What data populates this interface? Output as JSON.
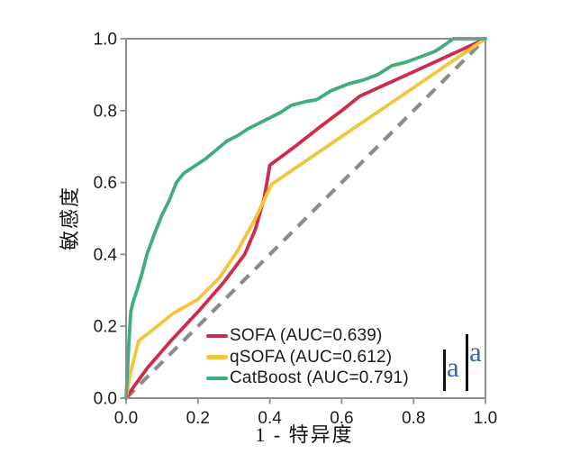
{
  "figure": {
    "background": "#ffffff",
    "title": ""
  },
  "axis": {
    "spine_color": "#8e8e8e",
    "tick_color": "#8e8e8e",
    "tick_text_color": "#1b1b1b"
  },
  "chart_data": {
    "type": "line",
    "subtype": "roc-curves",
    "xlabel": "1 - 特异度",
    "ylabel": "敏感度",
    "xlim": [
      0.0,
      1.0
    ],
    "ylim": [
      0.0,
      1.0
    ],
    "x_ticks": [
      "0.0",
      "0.2",
      "0.4",
      "0.6",
      "0.8",
      "1.0"
    ],
    "y_ticks": [
      "0.0",
      "0.2",
      "0.4",
      "0.6",
      "0.8",
      "1.0"
    ],
    "grid": false,
    "legend_position": "lower right",
    "reference_line": {
      "name": "chance-diagonal",
      "style": "dashed",
      "color": "#8c8c8c",
      "from": [
        0.0,
        0.0
      ],
      "to": [
        1.0,
        1.0
      ]
    },
    "series": [
      {
        "name": "SOFA",
        "label": "SOFA (AUC=0.639)",
        "auc": 0.639,
        "color": "#cf2b4a",
        "points": [
          [
            0.0,
            0.0
          ],
          [
            0.02,
            0.03
          ],
          [
            0.06,
            0.085
          ],
          [
            0.125,
            0.16
          ],
          [
            0.2,
            0.24
          ],
          [
            0.27,
            0.32
          ],
          [
            0.33,
            0.4
          ],
          [
            0.36,
            0.47
          ],
          [
            0.385,
            0.56
          ],
          [
            0.4,
            0.648
          ],
          [
            0.47,
            0.7
          ],
          [
            0.54,
            0.755
          ],
          [
            0.6,
            0.8
          ],
          [
            0.65,
            0.84
          ],
          [
            0.72,
            0.872
          ],
          [
            0.8,
            0.908
          ],
          [
            0.9,
            0.954
          ],
          [
            1.0,
            1.0
          ]
        ]
      },
      {
        "name": "qSOFA",
        "label": "qSOFA (AUC=0.612)",
        "auc": 0.612,
        "color": "#f2c53d",
        "points": [
          [
            0.0,
            0.0
          ],
          [
            0.012,
            0.07
          ],
          [
            0.035,
            0.16
          ],
          [
            0.08,
            0.195
          ],
          [
            0.13,
            0.235
          ],
          [
            0.2,
            0.275
          ],
          [
            0.26,
            0.335
          ],
          [
            0.31,
            0.41
          ],
          [
            0.36,
            0.5
          ],
          [
            0.405,
            0.595
          ],
          [
            0.5,
            0.66
          ],
          [
            0.6,
            0.728
          ],
          [
            0.7,
            0.796
          ],
          [
            0.8,
            0.864
          ],
          [
            0.9,
            0.932
          ],
          [
            1.0,
            1.0
          ]
        ]
      },
      {
        "name": "CatBoost",
        "label": "CatBoost (AUC=0.791)",
        "auc": 0.791,
        "color": "#3fae7c",
        "points": [
          [
            0.0,
            0.0
          ],
          [
            0.004,
            0.08
          ],
          [
            0.008,
            0.16
          ],
          [
            0.013,
            0.24
          ],
          [
            0.02,
            0.27
          ],
          [
            0.03,
            0.3
          ],
          [
            0.045,
            0.35
          ],
          [
            0.058,
            0.4
          ],
          [
            0.08,
            0.46
          ],
          [
            0.1,
            0.51
          ],
          [
            0.12,
            0.55
          ],
          [
            0.14,
            0.6
          ],
          [
            0.16,
            0.625
          ],
          [
            0.19,
            0.645
          ],
          [
            0.22,
            0.665
          ],
          [
            0.25,
            0.69
          ],
          [
            0.28,
            0.715
          ],
          [
            0.31,
            0.73
          ],
          [
            0.34,
            0.75
          ],
          [
            0.38,
            0.77
          ],
          [
            0.43,
            0.795
          ],
          [
            0.46,
            0.815
          ],
          [
            0.5,
            0.825
          ],
          [
            0.53,
            0.83
          ],
          [
            0.57,
            0.855
          ],
          [
            0.62,
            0.875
          ],
          [
            0.66,
            0.885
          ],
          [
            0.7,
            0.9
          ],
          [
            0.74,
            0.925
          ],
          [
            0.78,
            0.935
          ],
          [
            0.82,
            0.95
          ],
          [
            0.86,
            0.965
          ],
          [
            0.89,
            0.985
          ],
          [
            0.91,
            1.0
          ],
          [
            1.0,
            1.0
          ]
        ]
      }
    ]
  },
  "annotations": {
    "markers": [
      {
        "label": "a",
        "color": "#3a64b8"
      },
      {
        "label": "a",
        "color": "#3a64b8"
      }
    ],
    "bar_color": "#111111"
  }
}
